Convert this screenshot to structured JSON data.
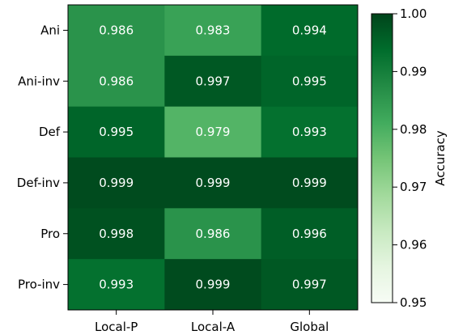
{
  "chart_data": {
    "type": "heatmap",
    "rows": [
      "Ani",
      "Ani-inv",
      "Def",
      "Def-inv",
      "Pro",
      "Pro-inv"
    ],
    "columns": [
      "Local-P",
      "Local-A",
      "Global"
    ],
    "values": [
      [
        0.986,
        0.983,
        0.994
      ],
      [
        0.986,
        0.997,
        0.995
      ],
      [
        0.995,
        0.979,
        0.993
      ],
      [
        0.999,
        0.999,
        0.999
      ],
      [
        0.998,
        0.986,
        0.996
      ],
      [
        0.993,
        0.999,
        0.997
      ]
    ],
    "value_labels": [
      [
        "0.986",
        "0.983",
        "0.994"
      ],
      [
        "0.986",
        "0.997",
        "0.995"
      ],
      [
        "0.995",
        "0.979",
        "0.993"
      ],
      [
        "0.999",
        "0.999",
        "0.999"
      ],
      [
        "0.998",
        "0.986",
        "0.996"
      ],
      [
        "0.993",
        "0.999",
        "0.997"
      ]
    ],
    "colormap": "Greens",
    "colorbar": {
      "label": "Accuracy",
      "range": [
        0.95,
        1.0
      ],
      "ticks": [
        1.0,
        0.99,
        0.98,
        0.97,
        0.96,
        0.95
      ],
      "tick_labels": [
        "1.00",
        "0.99",
        "0.98",
        "0.97",
        "0.96",
        "0.95"
      ]
    }
  }
}
